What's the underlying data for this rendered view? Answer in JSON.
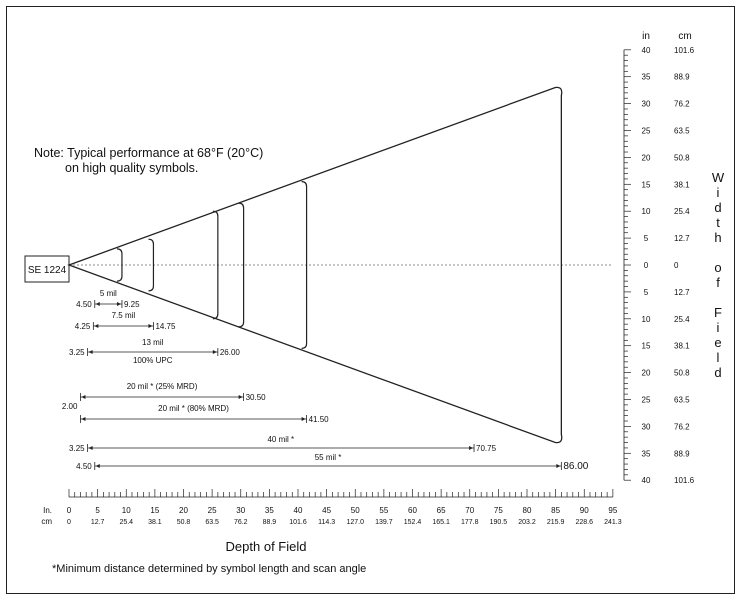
{
  "note": {
    "line1": "Note:  Typical performance at 68°F (20°C)",
    "line2": "on high quality symbols."
  },
  "scanner_label": "SE 1224",
  "right_axis": {
    "unit_in": "in",
    "unit_cm": "cm",
    "title_letters": [
      "W",
      "i",
      "d",
      "t",
      "h",
      "",
      "o",
      "f",
      "",
      "F",
      "i",
      "e",
      "l",
      "d"
    ],
    "ticks": [
      {
        "in": "40",
        "cm": "101.6"
      },
      {
        "in": "35",
        "cm": "88.9"
      },
      {
        "in": "30",
        "cm": "76.2"
      },
      {
        "in": "25",
        "cm": "63.5"
      },
      {
        "in": "20",
        "cm": "50.8"
      },
      {
        "in": "15",
        "cm": "38.1"
      },
      {
        "in": "10",
        "cm": "25.4"
      },
      {
        "in": "5",
        "cm": "12.7"
      },
      {
        "in": "0",
        "cm": "0"
      },
      {
        "in": "5",
        "cm": "12.7"
      },
      {
        "in": "10",
        "cm": "25.4"
      },
      {
        "in": "15",
        "cm": "38.1"
      },
      {
        "in": "20",
        "cm": "50.8"
      },
      {
        "in": "25",
        "cm": "63.5"
      },
      {
        "in": "30",
        "cm": "76.2"
      },
      {
        "in": "35",
        "cm": "88.9"
      },
      {
        "in": "40",
        "cm": "101.6"
      }
    ]
  },
  "bottom_axis": {
    "unit_in": "In.",
    "unit_cm": "cm",
    "title": "Depth of Field",
    "ticks": [
      {
        "in": "0",
        "cm": "0"
      },
      {
        "in": "5",
        "cm": "12.7"
      },
      {
        "in": "10",
        "cm": "25.4"
      },
      {
        "in": "15",
        "cm": "38.1"
      },
      {
        "in": "20",
        "cm": "50.8"
      },
      {
        "in": "25",
        "cm": "63.5"
      },
      {
        "in": "30",
        "cm": "76.2"
      },
      {
        "in": "35",
        "cm": "88.9"
      },
      {
        "in": "40",
        "cm": "101.6"
      },
      {
        "in": "45",
        "cm": "114.3"
      },
      {
        "in": "50",
        "cm": "127.0"
      },
      {
        "in": "55",
        "cm": "139.7"
      },
      {
        "in": "60",
        "cm": "152.4"
      },
      {
        "in": "65",
        "cm": "165.1"
      },
      {
        "in": "70",
        "cm": "177.8"
      },
      {
        "in": "75",
        "cm": "190.5"
      },
      {
        "in": "80",
        "cm": "203.2"
      },
      {
        "in": "85",
        "cm": "215.9"
      },
      {
        "in": "90",
        "cm": "228.6"
      },
      {
        "in": "95",
        "cm": "241.3"
      }
    ]
  },
  "ranges": [
    {
      "label": "5 mil",
      "near": 4.5,
      "far": 9.25,
      "near_text": "4.50",
      "far_text": "9.25",
      "sub": "",
      "half_width_in": 3
    },
    {
      "label": "7.5 mil",
      "near": 4.25,
      "far": 14.75,
      "near_text": "4.25",
      "far_text": "14.75",
      "sub": "",
      "half_width_in": 4.8
    },
    {
      "label": "13  mil",
      "near": 3.25,
      "far": 26.0,
      "near_text": "3.25",
      "far_text": "26.00",
      "sub": "100% UPC",
      "half_width_in": 10
    },
    {
      "label": "20 mil * (25% MRD)",
      "near": 2.0,
      "far": 30.5,
      "near_text": "2.00",
      "far_text": "30.50",
      "sub": "",
      "half_width_in": 11.5
    },
    {
      "label": "20 mil * (80% MRD)",
      "near": 2.0,
      "far": 41.5,
      "near_text": "",
      "far_text": "41.50",
      "sub": "",
      "half_width_in": 15.5
    },
    {
      "label": "40 mil *",
      "near": 3.25,
      "far": 70.75,
      "near_text": "3.25",
      "far_text": "70.75",
      "sub": "",
      "half_width_in": null
    },
    {
      "label": "55 mil *",
      "near": 4.5,
      "far": 86.0,
      "near_text": "4.50",
      "far_text": "86.00",
      "sub": "",
      "half_width_in": 33
    }
  ],
  "footnote": "*Minimum distance determined by symbol length and scan angle"
}
